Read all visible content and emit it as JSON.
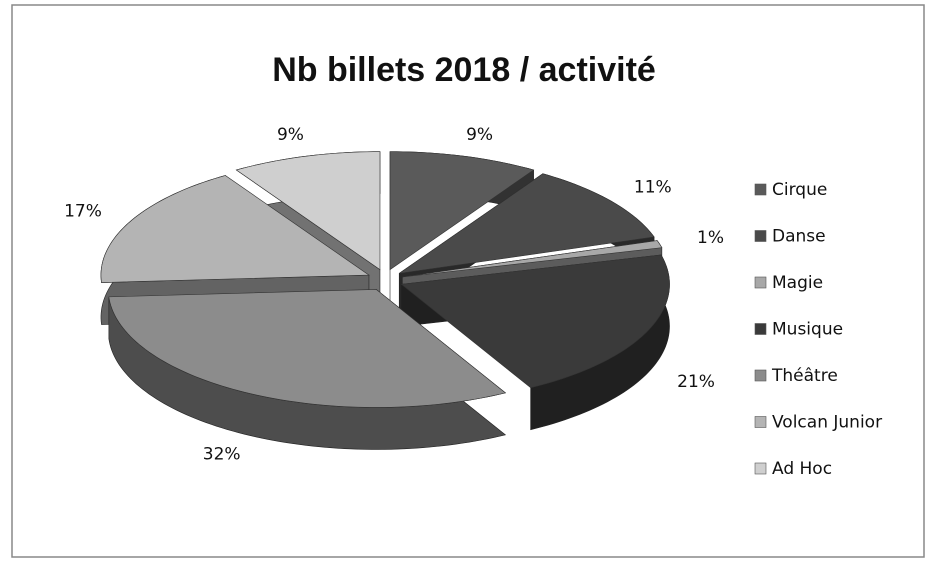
{
  "chart_data": {
    "type": "pie",
    "title": "Nb billets 2018 / activité",
    "categories": [
      "Cirque",
      "Danse",
      "Magie",
      "Musique",
      "Théâtre",
      "Volcan Junior",
      "Ad Hoc"
    ],
    "values": [
      9,
      11,
      1,
      21,
      32,
      17,
      9
    ],
    "value_labels": [
      "9%",
      "11%",
      "1%",
      "21%",
      "32%",
      "17%",
      "9%"
    ],
    "colors": [
      "#5a5a5a",
      "#4a4a4a",
      "#a8a8a8",
      "#3a3a3a",
      "#8c8c8c",
      "#b4b4b4",
      "#cfcfcf"
    ],
    "legend": "right"
  }
}
